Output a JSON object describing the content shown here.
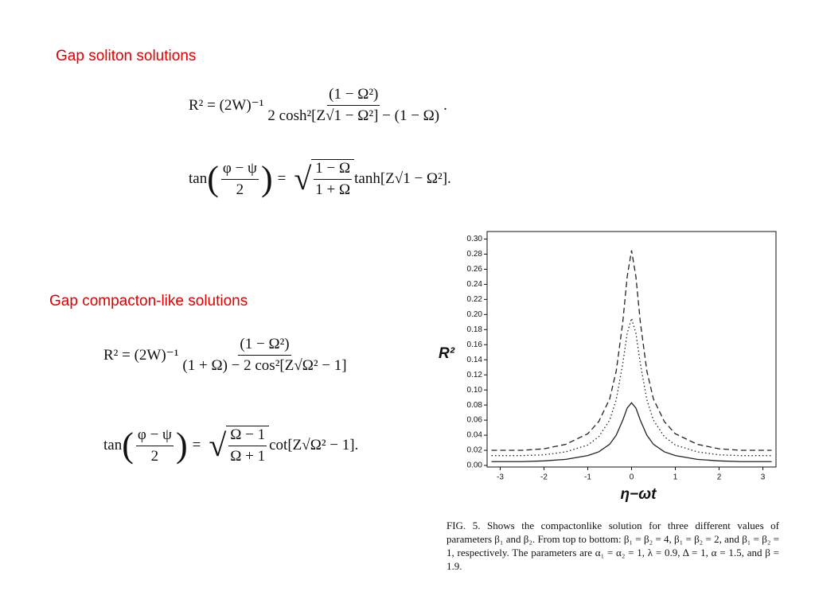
{
  "headings": [
    "Gap soliton solutions",
    "Gap compacton-like solutions"
  ],
  "equations": [
    {
      "lhs": "R² = (2W)⁻¹",
      "numerator": "(1 − Ω²)",
      "denominator": "2 cosh²[Z√1 − Ω²] − (1 − Ω)",
      "end": "."
    },
    {
      "prefix": "tan",
      "open": "(",
      "frac_num": "φ − ψ",
      "frac_den": "2",
      "close": ")",
      "relation": "=",
      "radical": "√",
      "root_num": "1 − Ω",
      "root_den": "1 + Ω",
      "suffix": "tanh[Z√1 − Ω²]."
    },
    {
      "lhs": "R² = (2W)⁻¹",
      "numerator": "(1 − Ω²)",
      "denominator": "(1 + Ω) − 2 cos²[Z√Ω² − 1]",
      "end": ""
    },
    {
      "prefix": "tan",
      "open": "(",
      "frac_num": "φ − ψ",
      "frac_den": "2",
      "close": ")",
      "relation": "=",
      "radical": "√",
      "root_num": "Ω − 1",
      "root_den": "Ω + 1",
      "suffix": "cot[Z√Ω² − 1]."
    }
  ],
  "caption": "FIG. 5. Shows the compactonlike solution for three different values of parameters β₁ and β₂. From top to bottom: β₁ = β₂ = 4, β₁ = β₂ = 2, and β₁ = β₂ = 1, respectively. The parameters are α₁ = α₂ = 1, λ = 0.9, Δ = 1, α = 1.5, and β = 1.9.",
  "chart_data": {
    "type": "line",
    "x_label": "η−ωt",
    "y_label": "R²",
    "x": [
      -3.2,
      -3,
      -2.5,
      -2,
      -1.5,
      -1,
      -0.75,
      -0.5,
      -0.35,
      -0.2,
      -0.1,
      0,
      0.1,
      0.2,
      0.35,
      0.5,
      0.75,
      1,
      1.5,
      2,
      2.5,
      3,
      3.2
    ],
    "series": [
      {
        "color": "#222222",
        "dash": "dashed",
        "values": [
          0.02,
          0.02,
          0.02,
          0.022,
          0.028,
          0.042,
          0.058,
          0.088,
          0.125,
          0.19,
          0.25,
          0.285,
          0.25,
          0.19,
          0.125,
          0.088,
          0.058,
          0.042,
          0.028,
          0.022,
          0.02,
          0.02,
          0.02
        ]
      },
      {
        "color": "#222222",
        "dash": "dotted",
        "values": [
          0.013,
          0.013,
          0.013,
          0.014,
          0.018,
          0.027,
          0.038,
          0.06,
          0.087,
          0.135,
          0.175,
          0.195,
          0.175,
          0.135,
          0.087,
          0.06,
          0.038,
          0.027,
          0.018,
          0.014,
          0.013,
          0.013,
          0.013
        ]
      },
      {
        "color": "#222222",
        "dash": "solid",
        "values": [
          0.005,
          0.005,
          0.005,
          0.006,
          0.008,
          0.013,
          0.018,
          0.028,
          0.04,
          0.06,
          0.076,
          0.083,
          0.076,
          0.06,
          0.04,
          0.028,
          0.018,
          0.013,
          0.008,
          0.006,
          0.005,
          0.005,
          0.005
        ]
      }
    ],
    "xlim": [
      -3.3,
      3.3
    ],
    "xticks": [
      -3,
      -2,
      -1,
      0,
      1,
      2,
      3
    ],
    "ylim": [
      0,
      0.31
    ],
    "yticks": [
      {
        "value": 0,
        "label": "0.00"
      },
      0.02,
      0.04,
      0.06,
      0.08,
      {
        "value": 0.1,
        "label": "0.10"
      },
      0.12,
      0.14,
      0.16,
      0.18,
      {
        "value": 0.2,
        "label": "0.20"
      },
      0.22,
      0.24,
      0.26,
      0.28,
      {
        "value": 0.3,
        "label": "0.30"
      }
    ]
  }
}
